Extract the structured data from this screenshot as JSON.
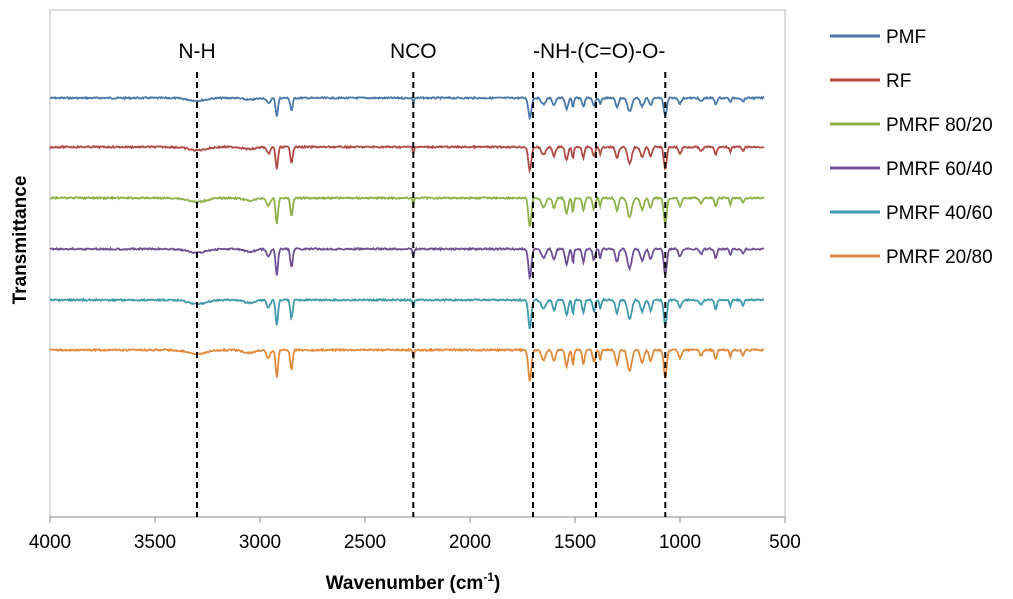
{
  "chart_data": {
    "type": "line",
    "title": "",
    "xlabel": "Wavenumber (cm",
    "xlabel_sup": "-1",
    "xlabel_end": ")",
    "ylabel": "Transmittance",
    "xlim": [
      4000,
      500
    ],
    "x_reversed": true,
    "x_ticks": [
      "4000",
      "3500",
      "3000",
      "2500",
      "2000",
      "1500",
      "1000",
      "500"
    ],
    "y_ticks_shown": false,
    "grid": false,
    "legend_position": "right",
    "annotations": [
      {
        "label": "N-H",
        "x": 3300
      },
      {
        "label": "NCO",
        "x": 2270
      },
      {
        "label": "-NH-(C=O)-O-",
        "x": [
          1700,
          1400,
          1070
        ]
      }
    ],
    "series": [
      {
        "name": "PMF",
        "color": "#4a78a8",
        "offset": 0.0,
        "scale": 0.9
      },
      {
        "name": "RF",
        "color": "#b04a45",
        "offset": 1.0,
        "scale": 1.1
      },
      {
        "name": "PMRF 80/20",
        "color": "#8eb049",
        "offset": 2.0,
        "scale": 1.3
      },
      {
        "name": "PMRF 60/40",
        "color": "#6f4f95",
        "offset": 3.0,
        "scale": 1.3
      },
      {
        "name": "PMRF 40/60",
        "color": "#3f9aae",
        "offset": 4.0,
        "scale": 1.3
      },
      {
        "name": "PMRF 20/80",
        "color": "#e08a3c",
        "offset": 5.0,
        "scale": 1.4
      }
    ]
  }
}
